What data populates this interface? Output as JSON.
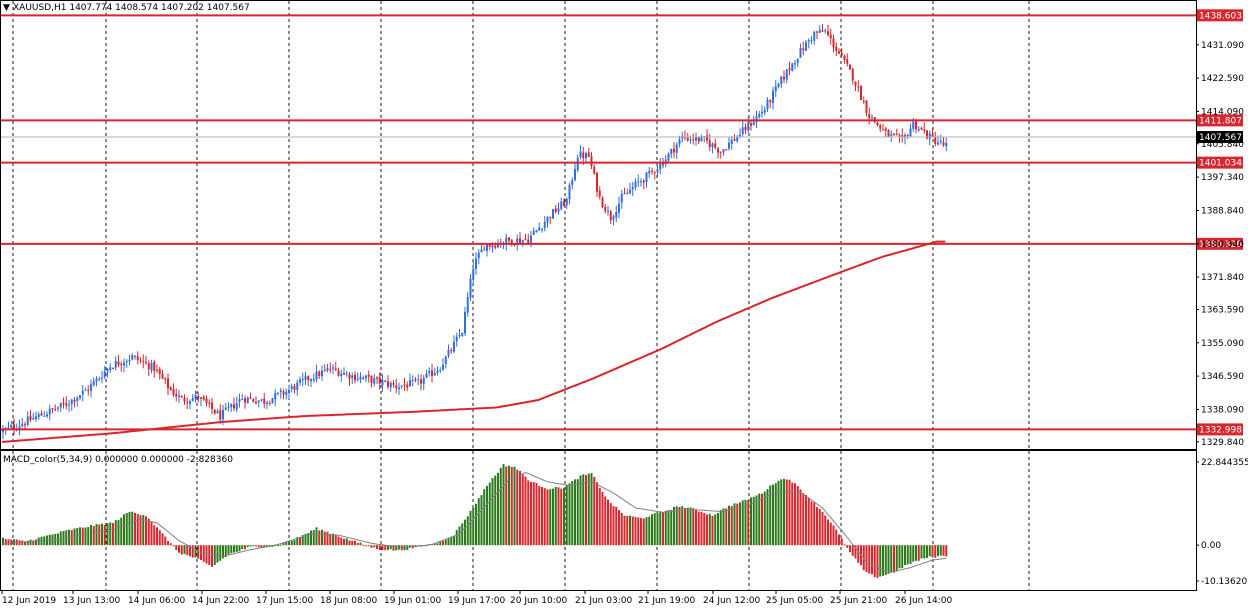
{
  "header": {
    "symbol_line": "XAUUSD,H1  1407.774 1408.574 1407.202 1407.567",
    "indicator_line": "MACD_color(5,34,9) 0.000000 0.000000 -2.828360"
  },
  "colors": {
    "bull": "#2f6fe0",
    "bear": "#d9262e",
    "ma": "#d9262e",
    "level_line": "#d9262e",
    "hist_up": "#2b7a1a",
    "hist_down": "#d9262e",
    "signal": "#808080",
    "grid": "#000000",
    "current_price_line": "#b0b0b0"
  },
  "chart_data": [
    {
      "type": "candlestick",
      "title": "XAUUSD,H1",
      "ylim": [
        1328.0,
        1442.0
      ],
      "price_axis_ticks": [
        "1431.090",
        "1422.590",
        "1414.090",
        "1405.840",
        "1397.340",
        "1388.840",
        "1380.340",
        "1371.840",
        "1363.590",
        "1355.090",
        "1346.590",
        "1338.090",
        "1329.840"
      ],
      "time_labels": [
        "12 Jun 2019",
        "13 Jun 13:00",
        "14 Jun 06:00",
        "14 Jun 22:00",
        "17 Jun 15:00",
        "18 Jun 08:00",
        "19 Jun 01:00",
        "19 Jun 17:00",
        "20 Jun 10:00",
        "21 Jun 03:00",
        "21 Jun 19:00",
        "24 Jun 12:00",
        "25 Jun 05:00",
        "25 Jun 21:00",
        "26 Jun 14:00"
      ],
      "horizontal_levels": [
        1438.603,
        1411.807,
        1401.034,
        1380.326,
        1332.998
      ],
      "current_price": 1407.567,
      "current_price_label": "1407.567",
      "level_labels": [
        "1438.603",
        "1411.807",
        "1401.034",
        "1380.326",
        "1332.998"
      ],
      "ma_anchors": [
        [
          0,
          1329.8
        ],
        [
          40,
          1332.0
        ],
        [
          80,
          1334.9
        ],
        [
          110,
          1336.4
        ],
        [
          150,
          1337.5
        ],
        [
          180,
          1338.6
        ],
        [
          195,
          1340.5
        ],
        [
          215,
          1346.0
        ],
        [
          240,
          1353.6
        ],
        [
          260,
          1360.5
        ],
        [
          280,
          1366.5
        ],
        [
          300,
          1371.8
        ],
        [
          320,
          1377.0
        ],
        [
          340,
          1380.9
        ]
      ],
      "close_anchors": [
        [
          0,
          1332.4
        ],
        [
          8,
          1334.6
        ],
        [
          16,
          1337.0
        ],
        [
          24,
          1339.5
        ],
        [
          32,
          1343.4
        ],
        [
          40,
          1349.2
        ],
        [
          48,
          1351.5
        ],
        [
          56,
          1348.6
        ],
        [
          62,
          1343.0
        ],
        [
          66,
          1340.6
        ],
        [
          72,
          1341.2
        ],
        [
          80,
          1336.3
        ],
        [
          88,
          1341.0
        ],
        [
          96,
          1340.2
        ],
        [
          104,
          1342.6
        ],
        [
          112,
          1346.0
        ],
        [
          120,
          1348.4
        ],
        [
          128,
          1346.6
        ],
        [
          136,
          1345.5
        ],
        [
          144,
          1344.0
        ],
        [
          152,
          1344.8
        ],
        [
          160,
          1349.0
        ],
        [
          164,
          1353.4
        ],
        [
          168,
          1358.2
        ],
        [
          172,
          1374.6
        ],
        [
          176,
          1379.8
        ],
        [
          184,
          1381.0
        ],
        [
          192,
          1381.5
        ],
        [
          200,
          1387.6
        ],
        [
          206,
          1391.4
        ],
        [
          210,
          1403.0
        ],
        [
          214,
          1402.6
        ],
        [
          218,
          1392.0
        ],
        [
          222,
          1387.0
        ],
        [
          226,
          1392.0
        ],
        [
          232,
          1396.0
        ],
        [
          236,
          1398.0
        ],
        [
          242,
          1402.0
        ],
        [
          248,
          1407.5
        ],
        [
          256,
          1406.8
        ],
        [
          262,
          1404.0
        ],
        [
          270,
          1409.0
        ],
        [
          278,
          1414.8
        ],
        [
          284,
          1422.0
        ],
        [
          290,
          1428.4
        ],
        [
          296,
          1434.0
        ],
        [
          300,
          1434.5
        ],
        [
          304,
          1430.0
        ],
        [
          310,
          1423.0
        ],
        [
          316,
          1413.0
        ],
        [
          322,
          1408.4
        ],
        [
          328,
          1406.5
        ],
        [
          332,
          1411.0
        ],
        [
          338,
          1407.5
        ],
        [
          343,
          1405.5
        ]
      ],
      "n_candles": 344,
      "macd": {
        "label": "MACD_color(5,34,9)",
        "ylim": [
          -10.136202,
          22.844355
        ],
        "axis_ticks": [
          "22.844355",
          "0.00",
          "-10.136202"
        ],
        "hist_anchors": [
          [
            0,
            1.8
          ],
          [
            8,
            1.0
          ],
          [
            16,
            2.5
          ],
          [
            24,
            4.0
          ],
          [
            32,
            5.2
          ],
          [
            40,
            6.0
          ],
          [
            46,
            9.0
          ],
          [
            52,
            8.0
          ],
          [
            58,
            3.0
          ],
          [
            64,
            -2.0
          ],
          [
            70,
            -3.5
          ],
          [
            76,
            -5.8
          ],
          [
            82,
            -2.5
          ],
          [
            90,
            -0.5
          ],
          [
            98,
            -0.3
          ],
          [
            106,
            1.5
          ],
          [
            114,
            4.5
          ],
          [
            120,
            3.0
          ],
          [
            126,
            1.4
          ],
          [
            136,
            -1.0
          ],
          [
            144,
            -1.4
          ],
          [
            152,
            -0.3
          ],
          [
            158,
            0.6
          ],
          [
            164,
            2.8
          ],
          [
            170,
            9.0
          ],
          [
            176,
            16.0
          ],
          [
            182,
            21.5
          ],
          [
            186,
            21.0
          ],
          [
            192,
            17.0
          ],
          [
            198,
            15.2
          ],
          [
            204,
            15.5
          ],
          [
            210,
            18.5
          ],
          [
            214,
            19.2
          ],
          [
            220,
            12.0
          ],
          [
            226,
            8.0
          ],
          [
            232,
            7.2
          ],
          [
            240,
            9.0
          ],
          [
            246,
            10.5
          ],
          [
            252,
            9.5
          ],
          [
            258,
            8.0
          ],
          [
            264,
            10.5
          ],
          [
            270,
            12.0
          ],
          [
            276,
            14.0
          ],
          [
            282,
            17.5
          ],
          [
            286,
            17.8
          ],
          [
            292,
            13.5
          ],
          [
            298,
            9.0
          ],
          [
            302,
            5.2
          ],
          [
            308,
            -2.0
          ],
          [
            314,
            -7.5
          ],
          [
            318,
            -8.6
          ],
          [
            324,
            -7.2
          ],
          [
            330,
            -4.8
          ],
          [
            336,
            -3.3
          ],
          [
            343,
            -2.8
          ]
        ],
        "signal_anchors": [
          [
            0,
            0.5
          ],
          [
            20,
            1.5
          ],
          [
            40,
            4.3
          ],
          [
            50,
            7.0
          ],
          [
            56,
            6.0
          ],
          [
            64,
            1.2
          ],
          [
            72,
            -2.0
          ],
          [
            80,
            -3.0
          ],
          [
            90,
            -1.2
          ],
          [
            100,
            0.2
          ],
          [
            112,
            3.0
          ],
          [
            122,
            2.7
          ],
          [
            134,
            0.5
          ],
          [
            146,
            -0.7
          ],
          [
            156,
            0.2
          ],
          [
            166,
            3.0
          ],
          [
            176,
            11.0
          ],
          [
            184,
            17.5
          ],
          [
            190,
            19.5
          ],
          [
            198,
            17.0
          ],
          [
            206,
            16.0
          ],
          [
            214,
            17.0
          ],
          [
            222,
            14.0
          ],
          [
            230,
            10.0
          ],
          [
            240,
            8.8
          ],
          [
            250,
            9.6
          ],
          [
            262,
            9.0
          ],
          [
            272,
            11.0
          ],
          [
            282,
            14.5
          ],
          [
            290,
            14.2
          ],
          [
            298,
            10.0
          ],
          [
            306,
            3.0
          ],
          [
            314,
            -4.5
          ],
          [
            322,
            -7.4
          ],
          [
            330,
            -6.0
          ],
          [
            338,
            -4.0
          ],
          [
            343,
            -3.5
          ]
        ]
      }
    }
  ]
}
